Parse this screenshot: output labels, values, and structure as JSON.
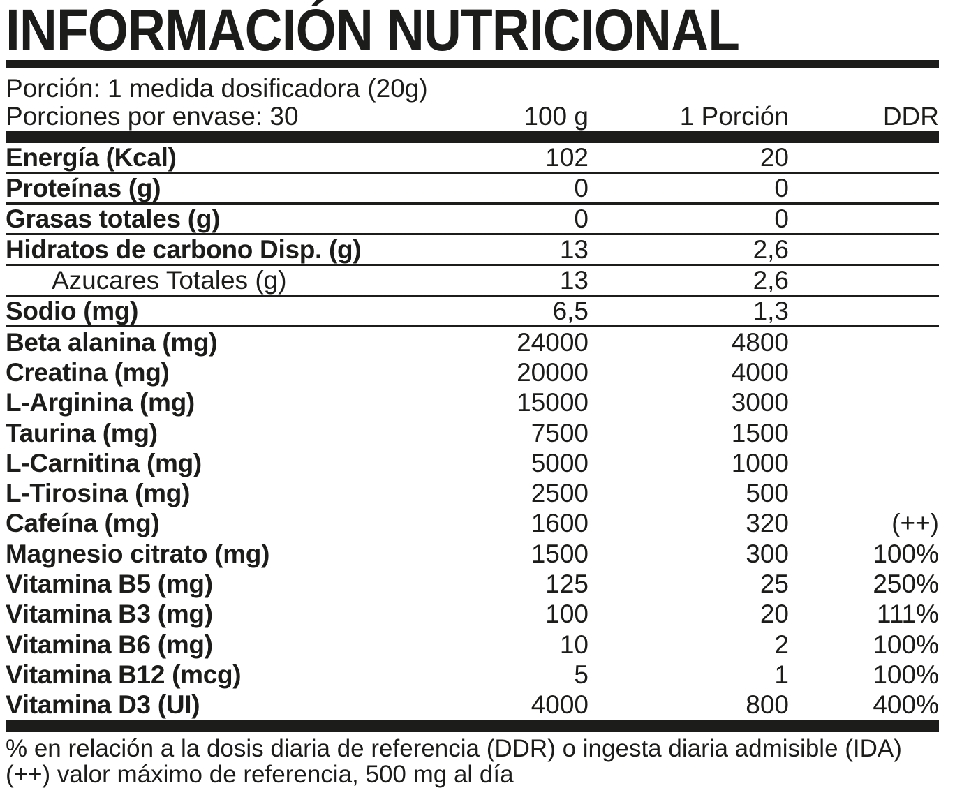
{
  "title": "INFORMACIÓN NUTRICIONAL",
  "serving_info": {
    "portion_line": "Porción: 1 medida dosificadora (20g)",
    "servings_line": "Porciones por envase: 30"
  },
  "table": {
    "column_headers": {
      "per_100g": "100 g",
      "per_portion": "1 Porción",
      "ddr": "DDR"
    },
    "rows": [
      {
        "label": "Energía (Kcal)",
        "per_100g": "102",
        "per_portion": "20",
        "ddr": "",
        "style": "bold",
        "separator": true
      },
      {
        "label": "Proteínas (g)",
        "per_100g": "0",
        "per_portion": "0",
        "ddr": "",
        "style": "bold",
        "separator": true
      },
      {
        "label": "Grasas totales (g)",
        "per_100g": "0",
        "per_portion": "0",
        "ddr": "",
        "style": "bold",
        "separator": true
      },
      {
        "label": "Hidratos de carbono Disp. (g)",
        "per_100g": "13",
        "per_portion": "2,6",
        "ddr": "",
        "style": "bold",
        "separator": true
      },
      {
        "label": "Azucares Totales (g)",
        "per_100g": "13",
        "per_portion": "2,6",
        "ddr": "",
        "style": "indented",
        "separator": true
      },
      {
        "label": "Sodio (mg)",
        "per_100g": "6,5",
        "per_portion": "1,3",
        "ddr": "",
        "style": "bold",
        "separator": true
      },
      {
        "label": "Beta alanina (mg)",
        "per_100g": "24000",
        "per_portion": "4800",
        "ddr": "",
        "style": "bold",
        "separator": false
      },
      {
        "label": "Creatina (mg)",
        "per_100g": "20000",
        "per_portion": "4000",
        "ddr": "",
        "style": "bold",
        "separator": false
      },
      {
        "label": "L-Arginina (mg)",
        "per_100g": "15000",
        "per_portion": "3000",
        "ddr": "",
        "style": "bold",
        "separator": false
      },
      {
        "label": "Taurina (mg)",
        "per_100g": "7500",
        "per_portion": "1500",
        "ddr": "",
        "style": "bold",
        "separator": false
      },
      {
        "label": "L-Carnitina (mg)",
        "per_100g": "5000",
        "per_portion": "1000",
        "ddr": "",
        "style": "bold",
        "separator": false
      },
      {
        "label": "L-Tirosina (mg)",
        "per_100g": "2500",
        "per_portion": "500",
        "ddr": "",
        "style": "bold",
        "separator": false
      },
      {
        "label": "Cafeína (mg)",
        "per_100g": "1600",
        "per_portion": "320",
        "ddr": "(++)",
        "style": "bold",
        "separator": false
      },
      {
        "label": "Magnesio citrato (mg)",
        "per_100g": "1500",
        "per_portion": "300",
        "ddr": "100%",
        "style": "bold",
        "separator": false
      },
      {
        "label": "Vitamina B5 (mg)",
        "per_100g": "125",
        "per_portion": "25",
        "ddr": "250%",
        "style": "bold",
        "separator": false
      },
      {
        "label": "Vitamina B3 (mg)",
        "per_100g": "100",
        "per_portion": "20",
        "ddr": "111%",
        "style": "bold",
        "separator": false
      },
      {
        "label": "Vitamina B6 (mg)",
        "per_100g": "10",
        "per_portion": "2",
        "ddr": "100%",
        "style": "bold",
        "separator": false
      },
      {
        "label": "Vitamina B12 (mcg)",
        "per_100g": "5",
        "per_portion": "1",
        "ddr": "100%",
        "style": "bold",
        "separator": false
      },
      {
        "label": "Vitamina D3 (UI)",
        "per_100g": "4000",
        "per_portion": "800",
        "ddr": "400%",
        "style": "bold",
        "separator": false
      }
    ]
  },
  "footnotes": {
    "ddr_note": "% en relación a la dosis diaria de referencia (DDR) o ingesta diaria admisible (IDA)",
    "max_note": "(++) valor máximo de referencia, 500 mg al día"
  },
  "colors": {
    "text": "#1c1c1a",
    "background": "#ffffff"
  }
}
